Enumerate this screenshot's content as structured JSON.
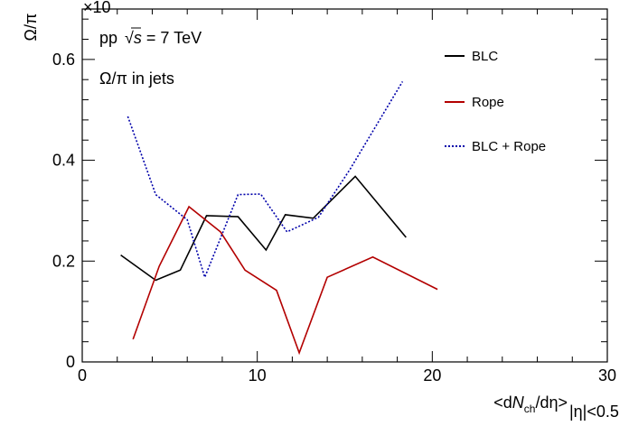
{
  "chart_data": {
    "type": "line",
    "title": "",
    "xlabel": "<dNch/dη>|η|<0.5",
    "xlabel_parts": {
      "open": "<d",
      "N": "N",
      "sub": "ch",
      "close": "/dη>",
      "range": "|η|<0.5"
    },
    "ylabel": "Ω/π",
    "xlim": [
      0,
      30
    ],
    "ylim": [
      0,
      0.7
    ],
    "x_ticks": [
      0,
      10,
      20,
      30
    ],
    "y_ticks": [
      0,
      0.2,
      0.4,
      0.6
    ],
    "y_tick_labels": [
      "0",
      "0.2",
      "0.4",
      "0.6"
    ],
    "exponent_label": "×10",
    "grid": false,
    "legend_position": "top-right",
    "annotations": {
      "system": "pp",
      "sqrt": "√",
      "s": "s",
      "energy": " = 7 TeV",
      "subtitle": "Ω/π in jets"
    },
    "series": [
      {
        "name": "BLC",
        "color": "#000000",
        "style": "solid",
        "x": [
          2.2,
          4.2,
          5.6,
          7.1,
          8.9,
          10.5,
          11.6,
          13.2,
          15.6,
          18.5
        ],
        "y": [
          0.212,
          0.162,
          0.182,
          0.29,
          0.288,
          0.222,
          0.292,
          0.285,
          0.368,
          0.247
        ]
      },
      {
        "name": "Rope",
        "color": "#b30000",
        "style": "solid",
        "x": [
          2.9,
          4.4,
          6.1,
          7.9,
          9.3,
          11.1,
          12.4,
          14.0,
          16.6,
          20.3
        ],
        "y": [
          0.045,
          0.19,
          0.308,
          0.258,
          0.182,
          0.142,
          0.018,
          0.168,
          0.208,
          0.144
        ]
      },
      {
        "name": "BLC + Rope",
        "color": "#0000aa",
        "style": "dotted",
        "x": [
          2.6,
          4.2,
          6.0,
          7.0,
          8.9,
          10.2,
          11.7,
          13.5,
          15.3,
          18.3
        ],
        "y": [
          0.487,
          0.332,
          0.282,
          0.168,
          0.332,
          0.333,
          0.258,
          0.287,
          0.382,
          0.556
        ]
      }
    ]
  }
}
